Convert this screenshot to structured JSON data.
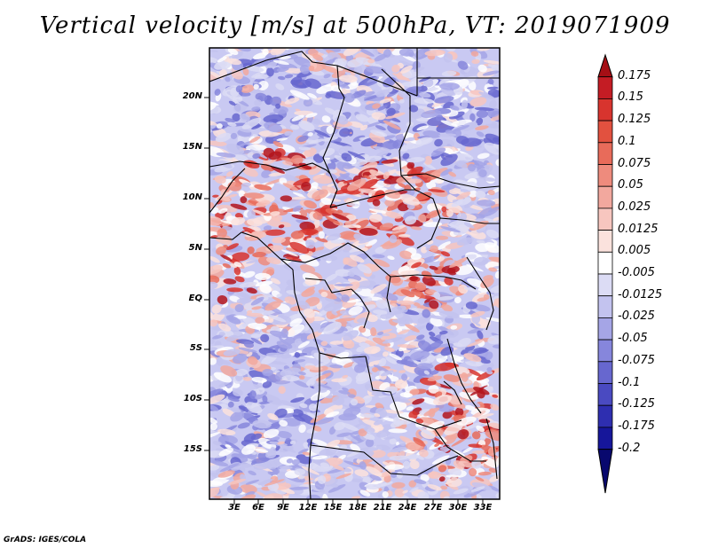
{
  "title": "Vertical velocity [m/s] at 500hPa, VT: 2019071909",
  "credit": "GrADS: IGES/COLA",
  "lat_labels": [
    "20N",
    "15N",
    "10N",
    "5N",
    "EQ",
    "5S",
    "10S",
    "15S"
  ],
  "lon_labels": [
    "3E",
    "6E",
    "9E",
    "12E",
    "15E",
    "18E",
    "21E",
    "24E",
    "27E",
    "30E",
    "33E"
  ],
  "colorbar": {
    "labels": [
      "0.175",
      "0.15",
      "0.125",
      "0.1",
      "0.075",
      "0.05",
      "0.025",
      "0.0125",
      "0.005",
      "-0.005",
      "-0.0125",
      "-0.025",
      "-0.05",
      "-0.075",
      "-0.1",
      "-0.125",
      "-0.175",
      "-0.2"
    ],
    "colors": [
      "#a50f15",
      "#c41c24",
      "#d8342e",
      "#e2513f",
      "#e86b5a",
      "#ee8b7d",
      "#f2a89e",
      "#f7c6bf",
      "#fbe2dd",
      "#ffffff",
      "#dcdcf5",
      "#c3c3ef",
      "#a5a5e6",
      "#8686dc",
      "#6767cf",
      "#4a4ac1",
      "#2e2eb0",
      "#16169a",
      "#08086e"
    ]
  },
  "map_colors": {
    "red": [
      "#fbe2dd",
      "#f7c6bf",
      "#f2a89e",
      "#ee8b7d",
      "#e86b5a",
      "#d8342e",
      "#b3141c"
    ],
    "blue": [
      "#dcdcf5",
      "#c3c3ef",
      "#a5a5e6",
      "#8686dc",
      "#6767cf"
    ]
  }
}
